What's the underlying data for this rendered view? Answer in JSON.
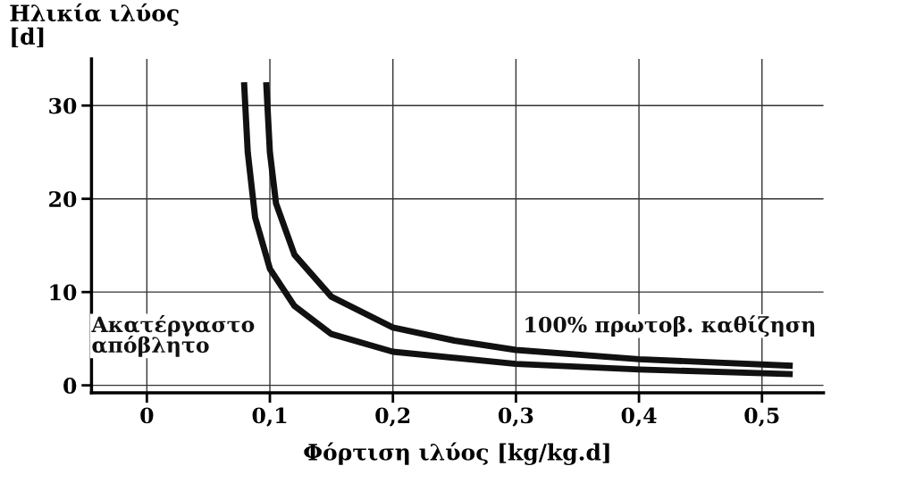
{
  "chart_data": {
    "type": "line",
    "xlabel": "Φόρτιση ιλύος [kg/kg.d]",
    "ylabel": "Ηλικία ιλύος\n[d]",
    "series": [
      {
        "name": "Ακατέργαστο\nαπόβλητο",
        "color": "#111111",
        "x": [
          0.079,
          0.082,
          0.088,
          0.1,
          0.12,
          0.15,
          0.2,
          0.3,
          0.4,
          0.525
        ],
        "values": [
          32.5,
          25,
          18,
          12.5,
          8.5,
          5.5,
          3.6,
          2.3,
          1.7,
          1.2
        ]
      },
      {
        "name": "100% πρωτοβ. καθίζηση",
        "color": "#111111",
        "x": [
          0.097,
          0.1,
          0.105,
          0.12,
          0.15,
          0.2,
          0.25,
          0.3,
          0.4,
          0.525
        ],
        "values": [
          32.5,
          25,
          19.5,
          14,
          9.5,
          6.2,
          4.8,
          3.8,
          2.8,
          2.1
        ]
      }
    ],
    "xlim": [
      -0.045,
      0.55
    ],
    "ylim": [
      -0.8,
      35
    ],
    "xticks": [
      {
        "value": 0,
        "label": "0"
      },
      {
        "value": 0.1,
        "label": "0,1"
      },
      {
        "value": 0.2,
        "label": "0,2"
      },
      {
        "value": 0.3,
        "label": "0,3"
      },
      {
        "value": 0.4,
        "label": "0,4"
      },
      {
        "value": 0.5,
        "label": "0,5"
      }
    ],
    "yticks": [
      0,
      10,
      20,
      30
    ],
    "grid": true,
    "legend": false,
    "marker": "none",
    "line_style": "solid"
  }
}
